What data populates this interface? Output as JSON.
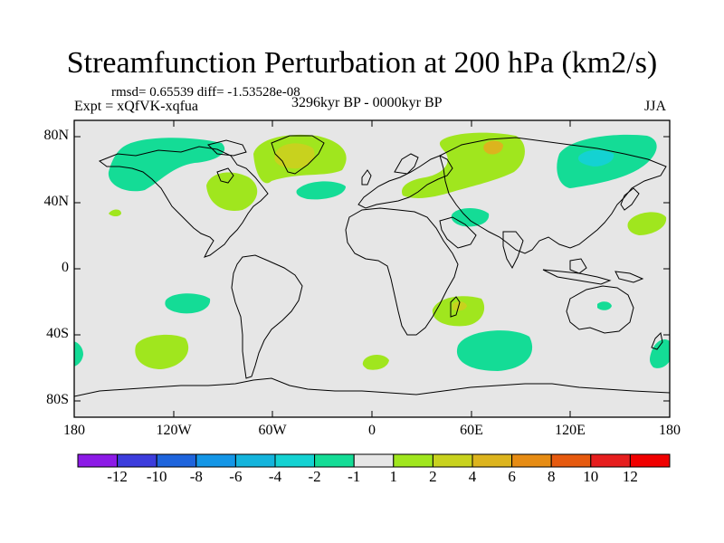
{
  "title": "Streamfunction Perturbation at 200 hPa (km2/s)",
  "stats": "rmsd= 0.65539 diff= -1.53528e-08",
  "experiment": "Expt = xQfVK-xqfua",
  "period": "3296kyr BP - 0000kyr BP",
  "season": "JJA",
  "map": {
    "y_ticks": [
      "80N",
      "40N",
      "0",
      "40S",
      "80S"
    ],
    "x_ticks": [
      "180",
      "120W",
      "60W",
      "0",
      "60E",
      "120E",
      "180"
    ],
    "lon_range": [
      -180,
      180
    ],
    "lat_range": [
      -90,
      90
    ],
    "background_color": "#e6e6e6"
  },
  "colorbar": {
    "labels": [
      "-12",
      "-10",
      "-8",
      "-6",
      "-4",
      "-2",
      "-1",
      "1",
      "2",
      "4",
      "6",
      "8",
      "10",
      "12"
    ],
    "colors": [
      "#8c1ae6",
      "#3c3cdc",
      "#1e64dc",
      "#1496e6",
      "#14b4dc",
      "#14d2d2",
      "#14dc96",
      "#e6e6e6",
      "#a0e61e",
      "#c8d21e",
      "#dcb41e",
      "#e68c14",
      "#e65a0f",
      "#e61e1e",
      "#f00000"
    ]
  }
}
